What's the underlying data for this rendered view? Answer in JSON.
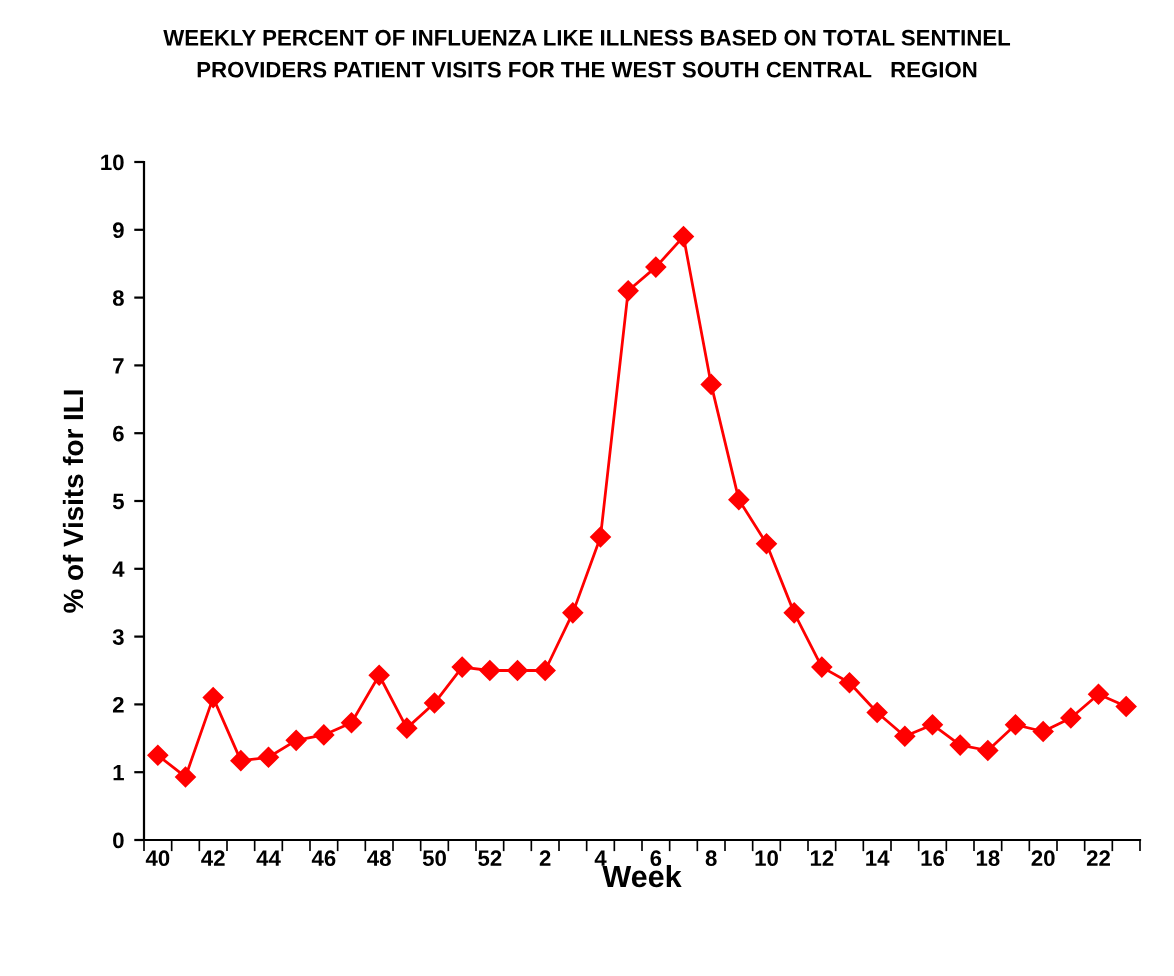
{
  "chart_data": {
    "type": "line",
    "title": "WEEKLY PERCENT OF INFLUENZA LIKE ILLNESS BASED ON TOTAL SENTINEL\nPROVIDERS PATIENT VISITS FOR THE WEST SOUTH CENTRAL   REGION",
    "xlabel": "Week",
    "ylabel": "% of Visits for ILI",
    "categories": [
      "40",
      null,
      "42",
      null,
      "44",
      null,
      "46",
      null,
      "48",
      null,
      "50",
      null,
      "52",
      null,
      "2",
      null,
      "4",
      null,
      "6",
      null,
      "8",
      null,
      "10",
      null,
      "12",
      null,
      "14",
      null,
      "16",
      null,
      "18",
      null,
      "20",
      null,
      "22",
      null
    ],
    "series": [
      {
        "color": "#ff0000",
        "values": [
          1.25,
          0.93,
          2.1,
          1.17,
          1.22,
          1.47,
          1.55,
          1.73,
          2.43,
          1.65,
          2.02,
          2.55,
          2.5,
          2.5,
          2.5,
          3.35,
          4.47,
          8.1,
          8.45,
          8.9,
          6.72,
          5.02,
          4.37,
          3.35,
          2.55,
          2.32,
          1.88,
          1.53,
          1.7,
          1.4,
          1.32,
          1.7,
          1.6,
          1.8,
          2.15,
          1.97
        ]
      }
    ],
    "ylim": [
      0,
      10
    ],
    "yticks": [
      0,
      1,
      2,
      3,
      4,
      5,
      6,
      7,
      8,
      9,
      10
    ],
    "grid": false,
    "legend": false,
    "marker": "diamond",
    "line_style": "solid"
  }
}
